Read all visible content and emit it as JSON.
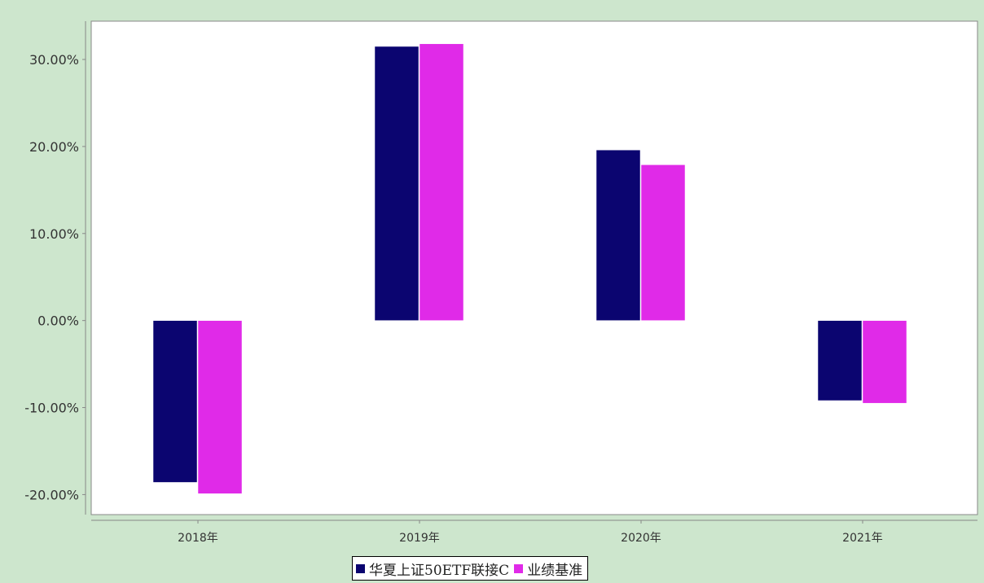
{
  "chart_data": {
    "type": "bar",
    "categories": [
      "2018年",
      "2019年",
      "2020年",
      "2021年"
    ],
    "series": [
      {
        "name": "华夏上证50ETF联接C",
        "color": "#0b0570",
        "values": [
          -18.6,
          31.5,
          19.6,
          -9.2
        ]
      },
      {
        "name": "业绩基准",
        "color": "#e02ae8",
        "values": [
          -19.9,
          31.8,
          17.9,
          -9.5
        ]
      }
    ],
    "yticks": [
      "-20.00%",
      "-10.00%",
      "0.00%",
      "10.00%",
      "20.00%",
      "30.00%"
    ],
    "ytick_values": [
      -20,
      -10,
      0,
      10,
      20,
      30
    ],
    "ylim": [
      -22.3,
      34.4
    ],
    "grid": false,
    "legend_position": "bottom-center"
  }
}
